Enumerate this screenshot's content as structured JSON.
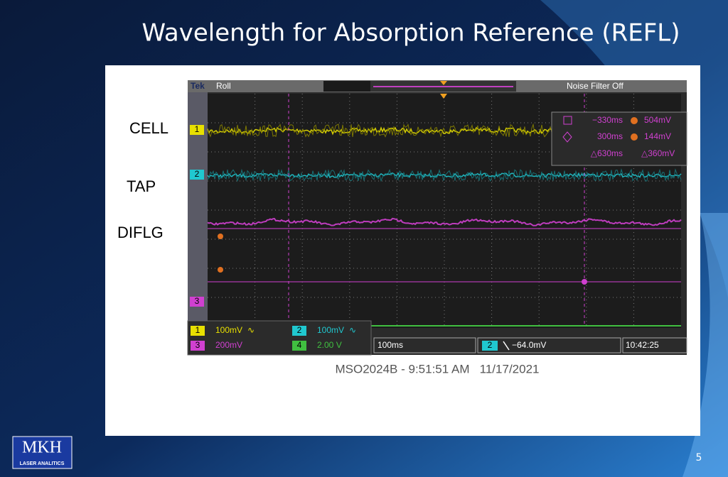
{
  "title": "Wavelength for Absorption Reference (REFL)",
  "channel_labels": [
    "CELL",
    "TAP",
    "DIFLG"
  ],
  "scope": {
    "brand": "Tek",
    "mode": "Roll",
    "filter": "Noise Filter Off",
    "markers": [
      "1",
      "2",
      "3"
    ],
    "cursor_readout": [
      [
        "−330ms",
        "504mV"
      ],
      [
        "300ms",
        "144mV"
      ],
      [
        "△630ms",
        "△360mV"
      ]
    ],
    "channels": [
      {
        "id": "1",
        "scale": "100mV",
        "coupling": "∿"
      },
      {
        "id": "2",
        "scale": "100mV",
        "coupling": "∿"
      },
      {
        "id": "3",
        "scale": "200mV"
      },
      {
        "id": "4",
        "scale": "2.00 V"
      }
    ],
    "timebase": "100ms",
    "trigger": {
      "channel": "2",
      "level": "−64.0mV"
    },
    "clock": "10:42:25"
  },
  "caption": "MSO2024B - 9:51:51 AM   11/17/2021",
  "logo": {
    "name": "MKH",
    "tagline": "LASER ANALITICS"
  },
  "page_number": "5"
}
